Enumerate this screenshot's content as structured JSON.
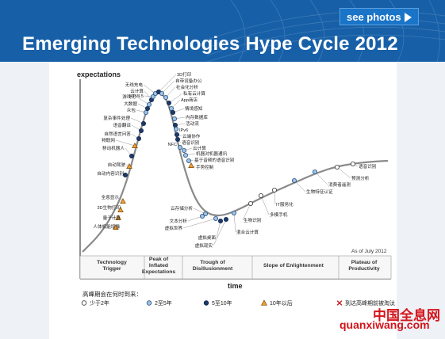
{
  "header": {
    "see_photos_label": "see photos",
    "headline": "Emerging Technologies Hype Cycle 2012",
    "brand_color": "#1760a8"
  },
  "chart_data": {
    "type": "line",
    "title": "Emerging Technologies Hype Cycle 2012",
    "ylabel": "expectations",
    "xlabel": "time",
    "as_of": "As of July 2012",
    "phases": [
      {
        "label": "Technology\nTrigger"
      },
      {
        "label": "Peak of\nInflated\nExpectations"
      },
      {
        "label": "Trough of\nDisillusionment"
      },
      {
        "label": "Slope of Enlightenment"
      },
      {
        "label": "Plateau of\nProductivity"
      }
    ],
    "legend_title": "高峰期会在何时到来：",
    "legend": [
      {
        "label": "少于2年",
        "marker": "circle-white"
      },
      {
        "label": "2至5年",
        "marker": "circle-lightblue"
      },
      {
        "label": "5至10年",
        "marker": "circle-navy"
      },
      {
        "label": "10年以后",
        "marker": "triangle-orange"
      },
      {
        "label": "到达高峰期前被淘汰",
        "marker": "x-red"
      }
    ],
    "technologies": [
      {
        "name": "人体机能增强",
        "phase": "Technology Trigger",
        "marker": "triangle-orange"
      },
      {
        "name": "量子计算",
        "phase": "Technology Trigger",
        "marker": "triangle-orange"
      },
      {
        "name": "3D生物打印",
        "phase": "Technology Trigger",
        "marker": "triangle-orange"
      },
      {
        "name": "全息显示",
        "phase": "Technology Trigger",
        "marker": "triangle-orange"
      },
      {
        "name": "自动内容识别",
        "phase": "Technology Trigger",
        "marker": "circle-navy"
      },
      {
        "name": "自动驾驶",
        "phase": "Technology Trigger",
        "marker": "triangle-orange"
      },
      {
        "name": "移动机器人",
        "phase": "Technology Trigger",
        "marker": "circle-navy"
      },
      {
        "name": "物联网",
        "phase": "Technology Trigger",
        "marker": "triangle-orange"
      },
      {
        "name": "自然语言问答",
        "phase": "Technology Trigger",
        "marker": "circle-navy"
      },
      {
        "name": "语音翻译",
        "phase": "Technology Trigger",
        "marker": "circle-navy"
      },
      {
        "name": "复杂事件处理",
        "phase": "Technology Trigger",
        "marker": "circle-navy"
      },
      {
        "name": "众包",
        "phase": "Peak of Inflated Expectations",
        "marker": "circle-lightblue"
      },
      {
        "name": "大数据",
        "phase": "Peak of Inflated Expectations",
        "marker": "circle-navy"
      },
      {
        "name": "游戏化",
        "phase": "Peak of Inflated Expectations",
        "marker": "circle-lightblue"
      },
      {
        "name": "云计算",
        "phase": "Peak of Inflated Expectations",
        "marker": "circle-navy"
      },
      {
        "name": "HTML5",
        "phase": "Peak of Inflated Expectations",
        "marker": "circle-lightblue"
      },
      {
        "name": "无线充电",
        "phase": "Peak of Inflated Expectations",
        "marker": "circle-lightblue"
      },
      {
        "name": "3D打印",
        "phase": "Peak of Inflated Expectations",
        "marker": "circle-navy"
      },
      {
        "name": "自带设备办公",
        "phase": "Peak of Inflated Expectations",
        "marker": "circle-lightblue"
      },
      {
        "name": "社会化分析",
        "phase": "Peak of Inflated Expectations",
        "marker": "circle-lightblue"
      },
      {
        "name": "私有云计算",
        "phase": "Peak of Inflated Expectations",
        "marker": "circle-navy"
      },
      {
        "name": "App商店",
        "phase": "Peak of Inflated Expectations",
        "marker": "circle-lightblue"
      },
      {
        "name": "情境感知",
        "phase": "Peak of Inflated Expectations",
        "marker": "circle-navy"
      },
      {
        "name": "内存数据库",
        "phase": "Peak of Inflated Expectations",
        "marker": "circle-lightblue"
      },
      {
        "name": "活动流",
        "phase": "Peak of Inflated Expectations",
        "marker": "circle-navy"
      },
      {
        "name": "IPv6",
        "phase": "Peak of Inflated Expectations",
        "marker": "circle-lightblue"
      },
      {
        "name": "云端协作",
        "phase": "Peak of Inflated Expectations",
        "marker": "circle-navy"
      },
      {
        "name": "语音识别",
        "phase": "Peak of Inflated Expectations",
        "marker": "circle-navy"
      },
      {
        "name": "NFC",
        "phase": "Peak of Inflated Expectations",
        "marker": "circle-lightblue"
      },
      {
        "name": "云计算",
        "phase": "Trough of Disillusionment",
        "marker": "circle-lightblue"
      },
      {
        "name": "机器对机器通讯",
        "phase": "Trough of Disillusionment",
        "marker": "circle-lightblue"
      },
      {
        "name": "基于音频的语音识别",
        "phase": "Trough of Disillusionment",
        "marker": "circle-lightblue"
      },
      {
        "name": "手势控制",
        "phase": "Trough of Disillusionment",
        "marker": "triangle-orange"
      },
      {
        "name": "云存储分析",
        "phase": "Trough of Disillusionment",
        "marker": "circle-lightblue"
      },
      {
        "name": "文本分析",
        "phase": "Trough of Disillusionment",
        "marker": "circle-lightblue"
      },
      {
        "name": "虚拟世界",
        "phase": "Trough of Disillusionment",
        "marker": "circle-lightblue"
      },
      {
        "name": "虚拟桌面",
        "phase": "Trough of Disillusionment",
        "marker": "circle-navy"
      },
      {
        "name": "虚拟现实",
        "phase": "Trough of Disillusionment",
        "marker": "circle-navy"
      },
      {
        "name": "混合云计算",
        "phase": "Trough of Disillusionment",
        "marker": "circle-lightblue"
      },
      {
        "name": "生物识别",
        "phase": "Slope of Enlightenment",
        "marker": "circle-white"
      },
      {
        "name": "多模手机",
        "phase": "Slope of Enlightenment",
        "marker": "circle-white"
      },
      {
        "name": "IT服务化",
        "phase": "Slope of Enlightenment",
        "marker": "circle-white"
      },
      {
        "name": "生物特征认证",
        "phase": "Slope of Enlightenment",
        "marker": "circle-lightblue"
      },
      {
        "name": "消费者遥测",
        "phase": "Slope of Enlightenment",
        "marker": "circle-lightblue"
      },
      {
        "name": "预测分析",
        "phase": "Slope of Enlightenment",
        "marker": "circle-white"
      },
      {
        "name": "语音识别",
        "phase": "Slope of Enlightenment",
        "marker": "circle-white"
      },
      {
        "name": "增强现实",
        "phase": "Slope of Enlightenment",
        "marker": "circle-white"
      }
    ]
  },
  "watermark": {
    "cn": "中国全息网",
    "url": "quanxiwang.com",
    "color": "#d4141b"
  }
}
